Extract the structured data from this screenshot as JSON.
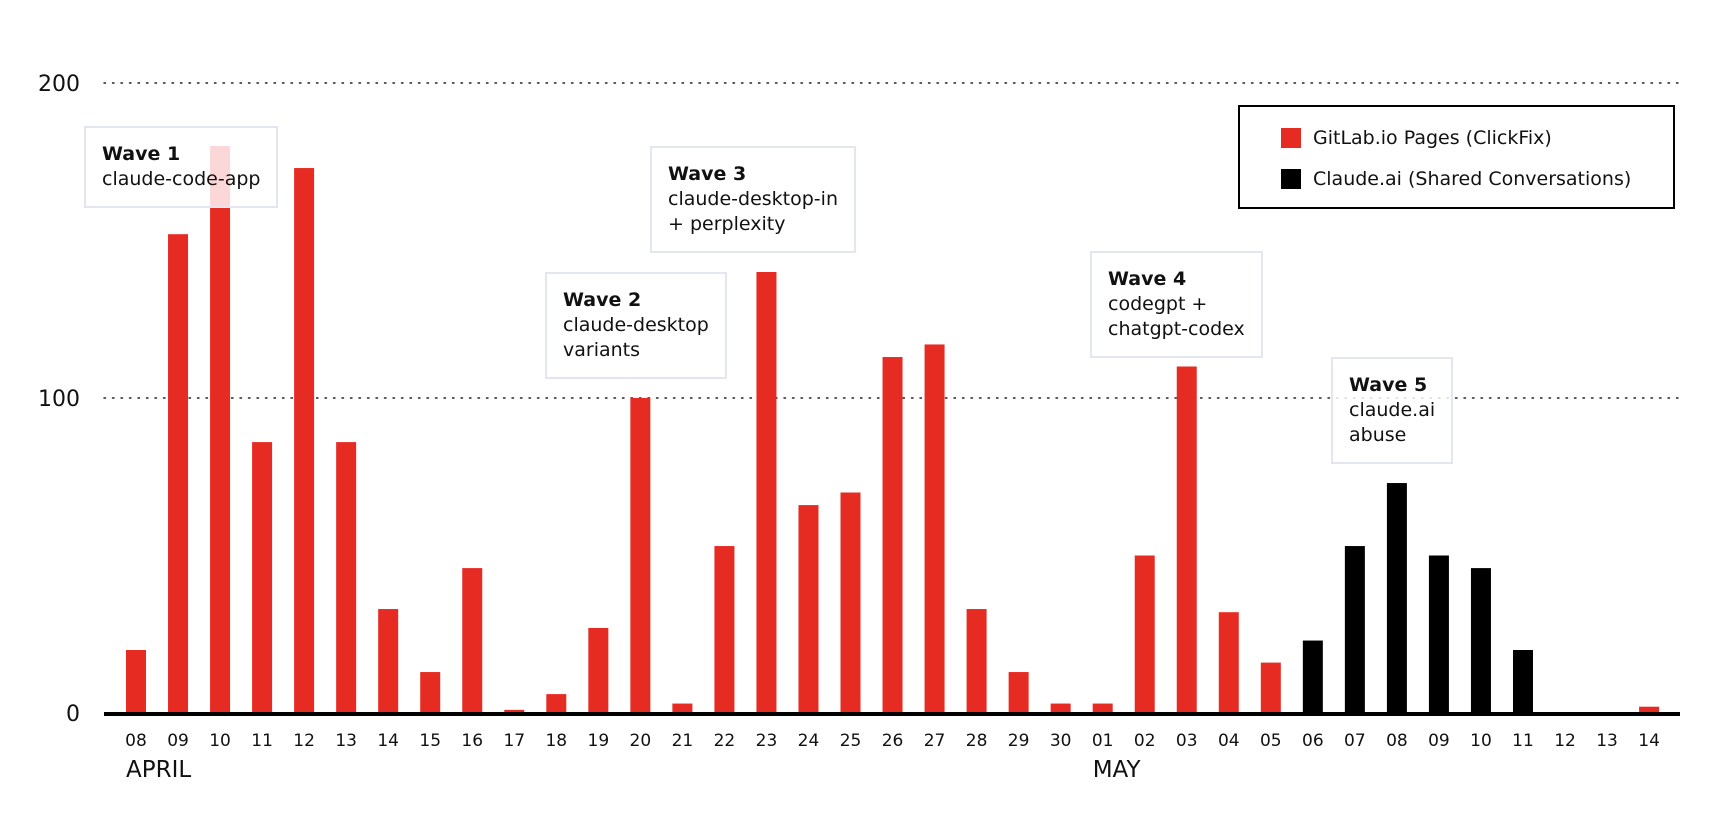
{
  "chart_data": {
    "type": "bar",
    "ylim": [
      0,
      200
    ],
    "yticks": [
      "0",
      "100",
      "200"
    ],
    "grid": true,
    "categories": [
      "08",
      "09",
      "10",
      "11",
      "12",
      "13",
      "14",
      "15",
      "16",
      "17",
      "18",
      "19",
      "20",
      "21",
      "22",
      "23",
      "24",
      "25",
      "26",
      "27",
      "28",
      "29",
      "30",
      "01",
      "02",
      "03",
      "04",
      "05",
      "06",
      "07",
      "08",
      "09",
      "10",
      "11",
      "12",
      "13",
      "14"
    ],
    "month_labels": [
      {
        "text": "APRIL",
        "category_index": 0
      },
      {
        "text": "MAY",
        "category_index": 23
      }
    ],
    "series": [
      {
        "name": "GitLab.io Pages (ClickFix)",
        "color": "#e62b23",
        "values": [
          20,
          152,
          180,
          86,
          173,
          86,
          33,
          13,
          46,
          1,
          6,
          27,
          100,
          3,
          53,
          140,
          66,
          70,
          113,
          117,
          33,
          13,
          3,
          3,
          50,
          110,
          32,
          16,
          0,
          0,
          0,
          0,
          0,
          0,
          0,
          0,
          2
        ]
      },
      {
        "name": "Claude.ai (Shared Conversations)",
        "color": "#000000",
        "values": [
          0,
          0,
          0,
          0,
          0,
          0,
          0,
          0,
          0,
          0,
          0,
          0,
          0,
          0,
          0,
          0,
          0,
          0,
          0,
          0,
          0,
          0,
          0,
          0,
          0,
          0,
          0,
          0,
          23,
          53,
          73,
          50,
          46,
          20,
          0,
          0,
          0
        ]
      }
    ],
    "annotations": [
      {
        "title": "Wave 1",
        "text": "claude-code-app"
      },
      {
        "title": "Wave 2",
        "text": "claude-desktop\nvariants"
      },
      {
        "title": "Wave 3",
        "text": "claude-desktop-in\n+ perplexity"
      },
      {
        "title": "Wave 4",
        "text": "codegpt +\nchatgpt-codex"
      },
      {
        "title": "Wave 5",
        "text": "claude.ai\nabuse"
      }
    ]
  }
}
